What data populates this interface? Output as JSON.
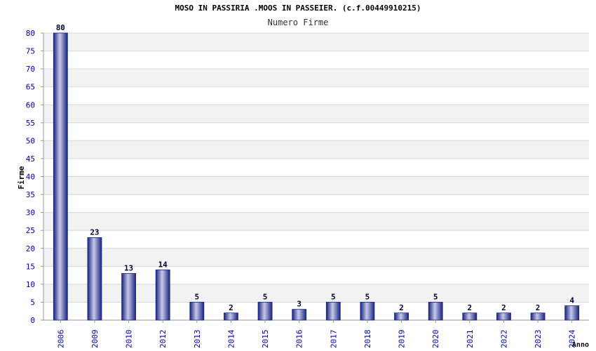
{
  "chart_data": {
    "type": "bar",
    "title": "MOSO IN PASSIRIA .MOOS IN PASSEIER. (c.f.00449910215)",
    "subtitle": "Numero Firme",
    "xlabel": "Anno",
    "ylabel": "Firme",
    "ylim": [
      0,
      80
    ],
    "yticks": [
      0,
      5,
      10,
      15,
      20,
      25,
      30,
      35,
      40,
      45,
      50,
      55,
      60,
      65,
      70,
      75,
      80
    ],
    "categories": [
      "2006",
      "2009",
      "2010",
      "2012",
      "2013",
      "2014",
      "2015",
      "2016",
      "2017",
      "2018",
      "2019",
      "2020",
      "2021",
      "2022",
      "2023",
      "2024"
    ],
    "values": [
      80,
      23,
      13,
      14,
      5,
      2,
      5,
      3,
      5,
      5,
      2,
      5,
      2,
      2,
      2,
      4
    ],
    "grid": "horizontal alternating bands",
    "colors": {
      "bar_dark": "#1a237e",
      "bar_light": "#c5cae9",
      "band": "#f2f2f2",
      "grid": "#d8d8d8",
      "tick_label": "#0000aa",
      "value_label": "#000033"
    }
  }
}
